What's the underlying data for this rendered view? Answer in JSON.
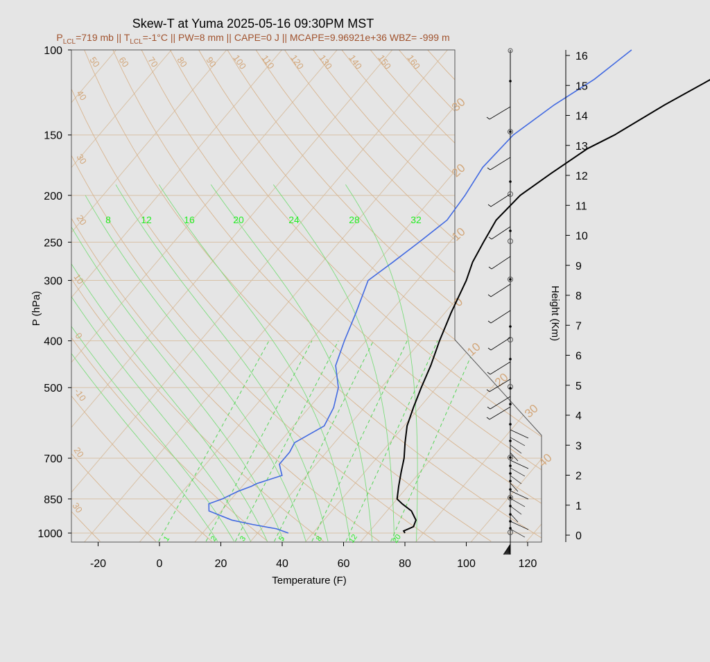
{
  "chart_data": {
    "type": "line",
    "title": "Skew-T at Yuma 2025-05-16 09:30PM MST",
    "subtitle": {
      "plcl": "=719 mb || T",
      "tlcl": "=-1°C || PW=8 mm || CAPE=0 J || MCAPE=9.96921e+36 WBZ= -999 m"
    },
    "xlabel": "Temperature (F)",
    "ylabel": "P (hPa)",
    "y2label": "Height (Km)",
    "xlim": [
      -28,
      125
    ],
    "ylim": [
      1040,
      100
    ],
    "x_ticks": [
      "-20",
      "0",
      "20",
      "40",
      "60",
      "80",
      "100",
      "120"
    ],
    "y_ticks": [
      "100",
      "150",
      "200",
      "250",
      "300",
      "400",
      "500",
      "700",
      "850",
      "1000"
    ],
    "height_ticks": [
      "0",
      "1",
      "2",
      "3",
      "4",
      "5",
      "6",
      "7",
      "8",
      "9",
      "10",
      "11",
      "12",
      "13",
      "14",
      "15",
      "16"
    ],
    "isotherm_labels": [
      "50",
      "60",
      "70",
      "80",
      "90",
      "100",
      "110",
      "120",
      "130",
      "140",
      "150",
      "160",
      "40",
      "30",
      "20",
      "10",
      "0",
      "-10",
      "20",
      "30"
    ],
    "isotherm_right_labels": [
      "30",
      "20",
      "10",
      "0",
      "10",
      "20",
      "30",
      "40"
    ],
    "mixing_ratio_top_labels": [
      "8",
      "12",
      "16",
      "20",
      "24",
      "28",
      "32"
    ],
    "mixing_ratio_bottom_labels": [
      "1",
      "2",
      "3",
      "5",
      "8",
      "12",
      "20"
    ],
    "series": [
      {
        "key": "temperature",
        "color": "#000000",
        "points": [
          [
            80,
            1000
          ],
          [
            79,
            990
          ],
          [
            81,
            970
          ],
          [
            80,
            940
          ],
          [
            76,
            900
          ],
          [
            71,
            870
          ],
          [
            68,
            850
          ],
          [
            65,
            800
          ],
          [
            62,
            750
          ],
          [
            59,
            700
          ],
          [
            55,
            650
          ],
          [
            51,
            600
          ],
          [
            48,
            550
          ],
          [
            45,
            500
          ],
          [
            42,
            450
          ],
          [
            38,
            400
          ],
          [
            34,
            350
          ],
          [
            30,
            300
          ],
          [
            27,
            275
          ],
          [
            25,
            250
          ],
          [
            23,
            225
          ],
          [
            24,
            200
          ],
          [
            28,
            180
          ],
          [
            33,
            160
          ],
          [
            38,
            150
          ],
          [
            46,
            130
          ],
          [
            54,
            115
          ],
          [
            60,
            100
          ]
        ]
      },
      {
        "key": "dewpoint",
        "color": "#4169e1",
        "points": [
          [
            42,
            1000
          ],
          [
            37,
            980
          ],
          [
            28,
            960
          ],
          [
            20,
            940
          ],
          [
            10,
            900
          ],
          [
            8,
            870
          ],
          [
            11,
            850
          ],
          [
            14,
            820
          ],
          [
            17,
            800
          ],
          [
            18,
            790
          ],
          [
            24,
            760
          ],
          [
            22,
            740
          ],
          [
            20,
            720
          ],
          [
            20,
            700
          ],
          [
            20,
            680
          ],
          [
            19,
            650
          ],
          [
            24,
            600
          ],
          [
            22,
            550
          ],
          [
            18,
            500
          ],
          [
            11,
            450
          ],
          [
            7,
            400
          ],
          [
            3,
            350
          ],
          [
            -2,
            300
          ],
          [
            1,
            275
          ],
          [
            4,
            250
          ],
          [
            7,
            225
          ],
          [
            6,
            200
          ],
          [
            4,
            175
          ],
          [
            5,
            150
          ],
          [
            10,
            130
          ],
          [
            16,
            115
          ],
          [
            20,
            100
          ]
        ]
      }
    ]
  }
}
